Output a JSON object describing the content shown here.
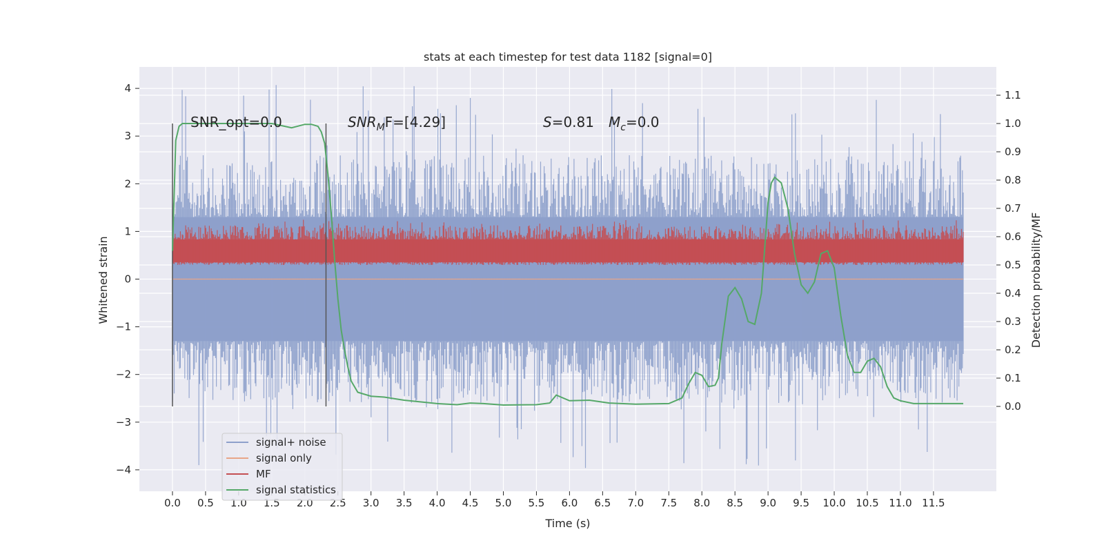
{
  "chart_data": {
    "type": "line",
    "title": "stats at each timestep for test data 1182 [signal=0]",
    "xlabel": "Time (s)",
    "ylabel": "Whitened strain",
    "ylabel_right": "Detection probability/MF",
    "xlim": [
      -0.5,
      12.45
    ],
    "ylim": [
      -4.45,
      4.45
    ],
    "ylim_right": [
      -0.3,
      1.2
    ],
    "x_ticks": [
      "0.0",
      "0.5",
      "1.0",
      "1.5",
      "2.0",
      "2.5",
      "3.0",
      "3.5",
      "4.0",
      "4.5",
      "5.0",
      "5.5",
      "6.0",
      "6.5",
      "7.0",
      "7.5",
      "8.0",
      "8.5",
      "9.0",
      "9.5",
      "10.0",
      "10.5",
      "11.0",
      "11.5"
    ],
    "y_ticks": [
      "−4",
      "−3",
      "−2",
      "−1",
      "0",
      "1",
      "2",
      "3",
      "4"
    ],
    "y_ticks_right": [
      "0.0",
      "0.1",
      "0.2",
      "0.3",
      "0.4",
      "0.5",
      "0.6",
      "0.7",
      "0.8",
      "0.9",
      "1.0",
      "1.1"
    ],
    "grid": true,
    "legend_position": "lower-left",
    "annotations": {
      "snr_opt": "SNR_opt=0.0",
      "snr_mf_prefix": "SNR",
      "snr_mf_sub": "M",
      "snr_mf_rest": "F=[4.29]",
      "s_label": "S",
      "s_rest": "=0.81",
      "mc_label": "M",
      "mc_sub": "c",
      "mc_rest": "=0.0"
    },
    "vertical_markers": [
      0.0,
      2.32
    ],
    "colors": {
      "signal_noise": "#8da0cb",
      "signal_only": "#e8a587",
      "mf": "#c44e52",
      "statistics": "#55a868",
      "marker": "#555555",
      "background": "#eaeaf2"
    },
    "series": [
      {
        "name": "signal+ noise",
        "axis": "left",
        "kind": "noise-band",
        "x_range": [
          0.0,
          11.95
        ],
        "core_range": [
          -1.3,
          1.3
        ],
        "typical_peak_range": [
          -2.6,
          2.6
        ],
        "max": 4.1,
        "min": -4.0
      },
      {
        "name": "signal only",
        "axis": "left",
        "kind": "line",
        "x_range": [
          0.0,
          11.95
        ],
        "value": 0.0
      },
      {
        "name": "MF",
        "axis": "right",
        "kind": "noise-band",
        "x_range": [
          0.0,
          11.95
        ],
        "core_range": [
          0.51,
          0.59
        ],
        "typical_peak_range": [
          0.5,
          0.64
        ],
        "max": 0.66,
        "min": 0.5
      },
      {
        "name": "signal statistics",
        "axis": "right",
        "kind": "line",
        "x": [
          0.0,
          0.05,
          0.1,
          0.15,
          0.2,
          0.3,
          0.5,
          1.0,
          1.5,
          1.7,
          1.8,
          2.0,
          2.1,
          2.2,
          2.25,
          2.3,
          2.35,
          2.4,
          2.45,
          2.5,
          2.55,
          2.6,
          2.65,
          2.7,
          2.8,
          3.0,
          3.2,
          3.5,
          4.0,
          4.3,
          4.5,
          4.7,
          5.0,
          5.5,
          5.7,
          5.8,
          6.0,
          6.3,
          6.6,
          7.0,
          7.5,
          7.7,
          7.8,
          7.9,
          8.0,
          8.1,
          8.2,
          8.25,
          8.3,
          8.4,
          8.5,
          8.6,
          8.7,
          8.8,
          8.9,
          9.0,
          9.05,
          9.1,
          9.2,
          9.3,
          9.4,
          9.5,
          9.6,
          9.7,
          9.8,
          9.9,
          10.0,
          10.1,
          10.2,
          10.3,
          10.4,
          10.5,
          10.6,
          10.7,
          10.8,
          10.9,
          11.0,
          11.2,
          11.5,
          11.95
        ],
        "y": [
          0.55,
          0.94,
          0.99,
          1.0,
          1.0,
          1.0,
          1.0,
          1.0,
          1.0,
          0.99,
          0.985,
          0.997,
          0.997,
          0.99,
          0.97,
          0.93,
          0.82,
          0.68,
          0.52,
          0.38,
          0.27,
          0.2,
          0.14,
          0.09,
          0.05,
          0.036,
          0.033,
          0.022,
          0.01,
          0.006,
          0.012,
          0.01,
          0.005,
          0.006,
          0.012,
          0.04,
          0.02,
          0.022,
          0.012,
          0.008,
          0.01,
          0.03,
          0.08,
          0.12,
          0.11,
          0.07,
          0.075,
          0.1,
          0.22,
          0.39,
          0.42,
          0.38,
          0.3,
          0.29,
          0.4,
          0.72,
          0.79,
          0.81,
          0.79,
          0.7,
          0.54,
          0.43,
          0.4,
          0.44,
          0.54,
          0.55,
          0.49,
          0.32,
          0.18,
          0.12,
          0.12,
          0.16,
          0.17,
          0.14,
          0.07,
          0.03,
          0.02,
          0.01,
          0.01,
          0.01
        ]
      }
    ]
  }
}
